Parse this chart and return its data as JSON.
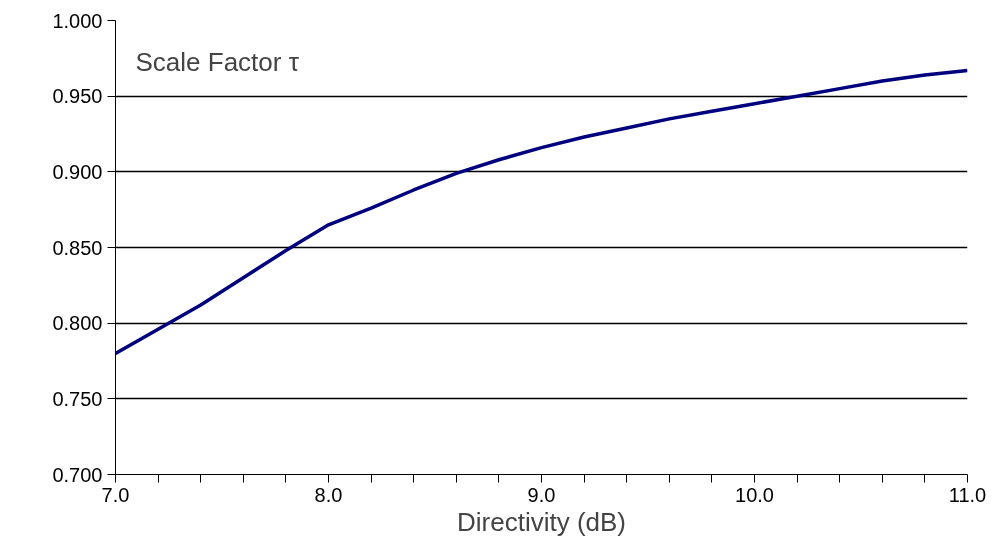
{
  "chart_data": {
    "type": "line",
    "title": "Scale Factor τ",
    "xlabel": "Directivity (dB)",
    "x": [
      7.0,
      7.2,
      7.4,
      7.6,
      7.8,
      8.0,
      8.2,
      8.4,
      8.6,
      8.8,
      9.0,
      9.2,
      9.4,
      9.6,
      9.8,
      10.0,
      10.2,
      10.4,
      10.6,
      10.8,
      11.0
    ],
    "series": [
      {
        "color": "#00007f",
        "values": [
          0.78,
          0.796,
          0.812,
          0.83,
          0.848,
          0.865,
          0.876,
          0.888,
          0.899,
          0.908,
          0.916,
          0.923,
          0.929,
          0.935,
          0.94,
          0.945,
          0.95,
          0.955,
          0.96,
          0.964,
          0.967
        ]
      }
    ],
    "xlim": [
      7.0,
      11.0
    ],
    "xticks": [
      {
        "value": 7.0,
        "label": "7.0"
      },
      {
        "value": 7.2,
        "label": null
      },
      {
        "value": 7.4,
        "label": null
      },
      {
        "value": 7.6,
        "label": null
      },
      {
        "value": 7.8,
        "label": null
      },
      {
        "value": 8.0,
        "label": "8.0"
      },
      {
        "value": 8.2,
        "label": null
      },
      {
        "value": 8.4,
        "label": null
      },
      {
        "value": 8.6,
        "label": null
      },
      {
        "value": 8.8,
        "label": null
      },
      {
        "value": 9.0,
        "label": "9.0"
      },
      {
        "value": 9.2,
        "label": null
      },
      {
        "value": 9.4,
        "label": null
      },
      {
        "value": 9.6,
        "label": null
      },
      {
        "value": 9.8,
        "label": null
      },
      {
        "value": 10.0,
        "label": "10.0"
      },
      {
        "value": 10.2,
        "label": null
      },
      {
        "value": 10.4,
        "label": null
      },
      {
        "value": 10.6,
        "label": null
      },
      {
        "value": 10.8,
        "label": null
      },
      {
        "value": 11.0,
        "label": "11.0"
      }
    ],
    "ylim": [
      0.7,
      1.0
    ],
    "yticks": [
      {
        "value": 0.7,
        "label": "0.700"
      },
      {
        "value": 0.75,
        "label": "0.750"
      },
      {
        "value": 0.8,
        "label": "0.800"
      },
      {
        "value": 0.85,
        "label": "0.850"
      },
      {
        "value": 0.9,
        "label": "0.900"
      },
      {
        "value": 0.95,
        "label": "0.950"
      },
      {
        "value": 1.0,
        "label": "1.000"
      }
    ],
    "grid": "y",
    "marker": "none",
    "line_style": "solid"
  }
}
